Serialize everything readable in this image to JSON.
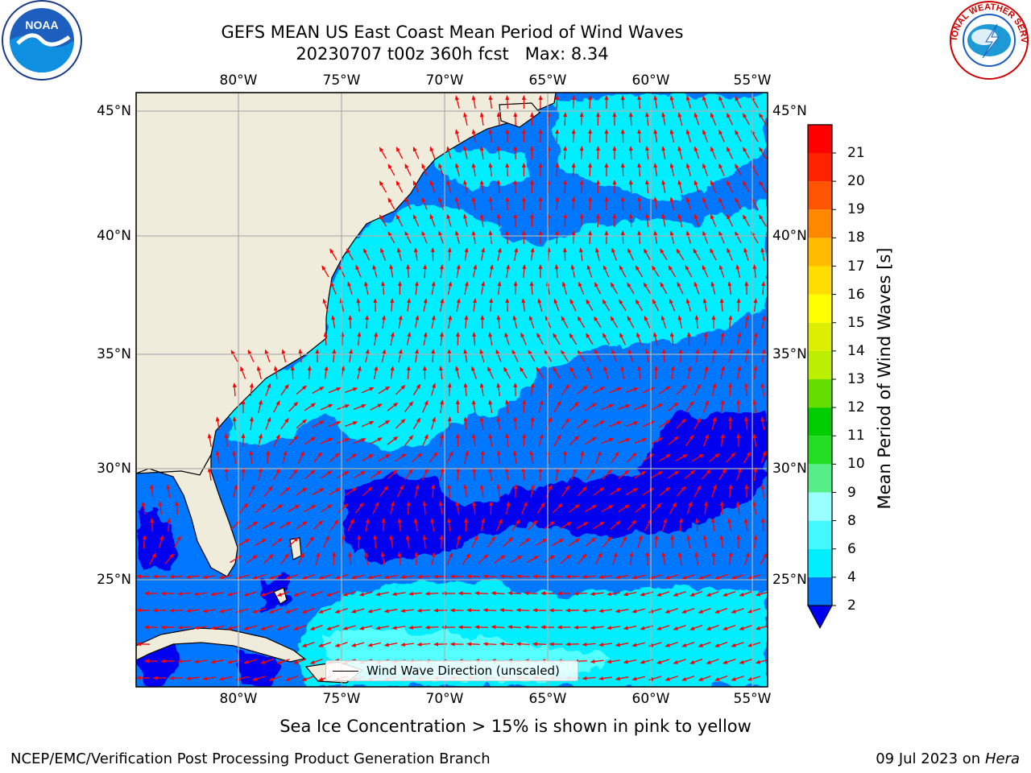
{
  "title": {
    "line1": "GEFS MEAN US East Coast Mean Period of Wind Waves",
    "line2": "20230707 t00z 360h fcst   Max: 8.34"
  },
  "map": {
    "lon_range": [
      -85,
      -54.2
    ],
    "lat_range": [
      20.5,
      46.3
    ],
    "lon_ticks": [
      "80°W",
      "75°W",
      "70°W",
      "65°W",
      "60°W",
      "55°W"
    ],
    "lat_ticks": [
      "45°N",
      "40°N",
      "35°N",
      "30°N",
      "25°N"
    ],
    "land_color": "#efecdc",
    "grid_color": "#b0b0b0",
    "arrow_color": "#ff0000",
    "legend_label": "Wind Wave Direction (unscaled)"
  },
  "colorbar": {
    "label": "Mean Period of Wind Waves [s]",
    "ticks": [
      "2",
      "4",
      "6",
      "8",
      "9",
      "10",
      "11",
      "12",
      "13",
      "14",
      "15",
      "16",
      "17",
      "18",
      "19",
      "20",
      "21"
    ],
    "colors": [
      "#0077ff",
      "#00eeff",
      "#44f8ff",
      "#99ffff",
      "#55ee88",
      "#22dd22",
      "#00cc00",
      "#66dd00",
      "#bbee00",
      "#ddee00",
      "#ffff00",
      "#ffdd00",
      "#ffbb00",
      "#ff8800",
      "#ff5500",
      "#ff2200",
      "#ff0000"
    ],
    "under_color": "#0000ee"
  },
  "logos": {
    "left": "NOAA",
    "right": "NATIONAL WEATHER SERVICE"
  },
  "note": "Sea Ice Concentration > 15% is shown in pink to yellow",
  "footer": {
    "left": "NCEP/EMC/Verification Post Processing Product Generation Branch",
    "right_prefix": "09 Jul 2023 on ",
    "right_host": "Hera"
  }
}
